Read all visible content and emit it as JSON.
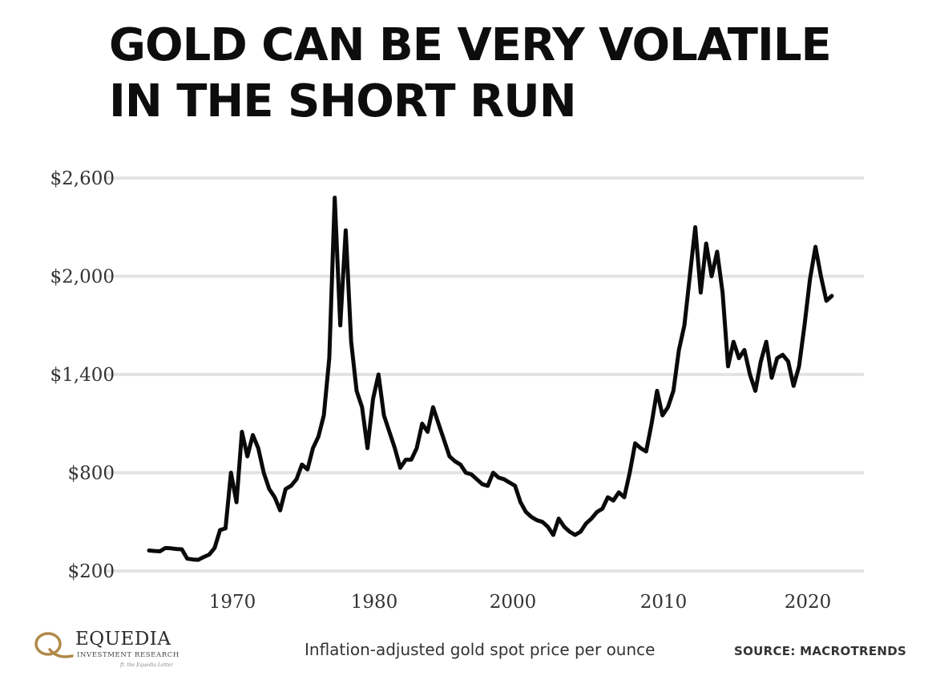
{
  "header": {
    "title_line1": "GOLD CAN BE VERY VOLATILE",
    "title_line2": "IN THE SHORT RUN"
  },
  "footer": {
    "logo_name": "EQUEDIA",
    "logo_sub": "INVESTMENT RESEARCH",
    "logo_tag": "ft. the Equedia Letter",
    "caption": "Inflation-adjusted gold spot price per ounce",
    "source": "SOURCE:  MACROTRENDS"
  },
  "colors": {
    "line": "#0a0a0a",
    "grid": "#e3e3e3",
    "logo_gold": "#b08a4a"
  },
  "chart_data": {
    "type": "line",
    "title": "GOLD CAN BE VERY VOLATILE IN THE SHORT RUN",
    "xlabel": "",
    "ylabel": "",
    "ylim": [
      200,
      2600
    ],
    "yticks": [
      200,
      800,
      1400,
      2000,
      2600
    ],
    "ytick_labels": [
      "$200",
      "$800",
      "$1,400",
      "$2,000",
      "$2,600"
    ],
    "xticks": [
      {
        "value": 1970,
        "label": "1970"
      },
      {
        "value": 1980,
        "label": "1980"
      },
      {
        "value": 2000,
        "label": "2000"
      },
      {
        "value": 2010,
        "label": "2010"
      },
      {
        "value": 2020,
        "label": "2020"
      }
    ],
    "grid": true,
    "legend": "none",
    "series": [
      {
        "values": [
          325,
          322,
          320,
          340,
          338,
          334,
          332,
          275,
          270,
          268,
          285,
          300,
          340,
          450,
          460,
          800,
          620,
          1050,
          900,
          1030,
          950,
          800,
          700,
          650,
          570,
          700,
          720,
          760,
          850,
          820,
          950,
          1020,
          1150,
          1500,
          2480,
          1700,
          2280,
          1600,
          1300,
          1200,
          950,
          1250,
          1400,
          1150,
          1050,
          950,
          830,
          880,
          880,
          950,
          1100,
          1050,
          1200,
          1100,
          1000,
          900,
          870,
          850,
          800,
          790,
          760,
          730,
          720,
          800,
          770,
          760,
          740,
          720,
          620,
          560,
          530,
          510,
          500,
          470,
          420,
          520,
          470,
          440,
          420,
          440,
          490,
          520,
          560,
          580,
          650,
          630,
          680,
          650,
          800,
          980,
          950,
          930,
          1100,
          1300,
          1150,
          1200,
          1300,
          1550,
          1700,
          2000,
          2300,
          1900,
          2200,
          2000,
          2150,
          1900,
          1450,
          1600,
          1500,
          1550,
          1400,
          1300,
          1480,
          1600,
          1380,
          1500,
          1520,
          1480,
          1330,
          1450,
          1700,
          1980,
          2180,
          2000,
          1850,
          1880
        ]
      }
    ]
  }
}
